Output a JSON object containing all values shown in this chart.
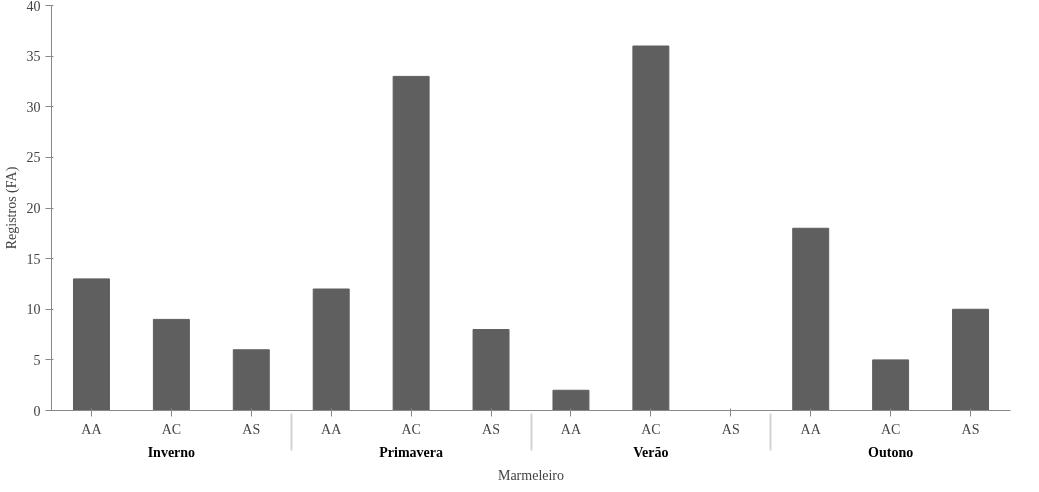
{
  "chart_data": {
    "type": "bar",
    "xlabel": "Marmeleiro",
    "ylabel": "Registros (FA)",
    "categories": [
      "AA",
      "AC",
      "AS",
      "AA",
      "AC",
      "AS",
      "AA",
      "AC",
      "AS",
      "AA",
      "AC",
      "AS"
    ],
    "annotations": [
      "Inverno",
      "Primavera",
      "Verão",
      "Outono"
    ],
    "values": [
      13,
      9,
      6,
      12,
      33,
      8,
      2,
      36,
      0,
      18,
      5,
      10
    ],
    "color": "#5f5f5f",
    "ylim": [
      0,
      40
    ],
    "yticks": [
      0,
      5,
      10,
      15,
      20,
      25,
      30,
      35,
      40
    ],
    "grid": false
  }
}
